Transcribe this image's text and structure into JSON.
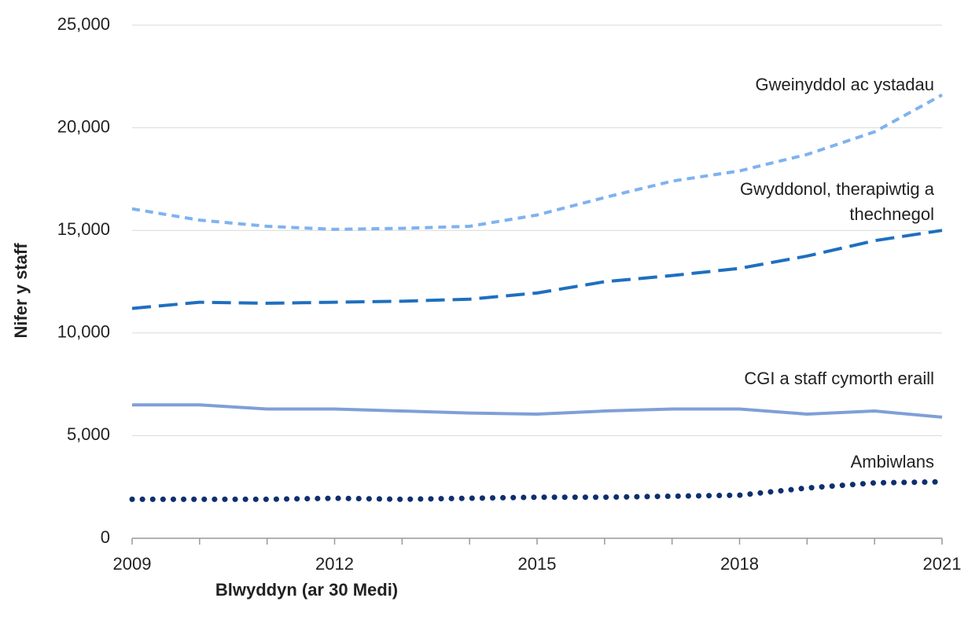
{
  "chart_data": {
    "type": "line",
    "xlabel": "Blwyddyn (ar 30 Medi)",
    "ylabel": "Nifer y staff",
    "x": [
      2009,
      2010,
      2011,
      2012,
      2013,
      2014,
      2015,
      2016,
      2017,
      2018,
      2019,
      2020,
      2021
    ],
    "xlim": [
      2009,
      2021
    ],
    "xticks": [
      2009,
      2012,
      2015,
      2018,
      2021
    ],
    "ylim": [
      0,
      25000
    ],
    "yticks": [
      0,
      {
        "value": 5000,
        "label": "5,000"
      },
      {
        "value": 10000,
        "label": "10,000"
      },
      {
        "value": 15000,
        "label": "15,000"
      },
      {
        "value": 20000,
        "label": "20,000"
      },
      {
        "value": 25000,
        "label": "25,000"
      }
    ],
    "grid": true,
    "series": [
      {
        "name": "Gweinyddol ac ystadau",
        "color": "#7fb2f0",
        "values": [
          16050,
          15500,
          15200,
          15050,
          15100,
          15200,
          15750,
          16600,
          17400,
          17900,
          18700,
          19800,
          21600
        ]
      },
      {
        "name": "Gwyddonol, therapiwtig a thechnegol",
        "color": "#1f6fbf",
        "values": [
          11200,
          11500,
          11450,
          11500,
          11550,
          11650,
          11950,
          12500,
          12800,
          13150,
          13750,
          14500,
          15000
        ]
      },
      {
        "name": "CGI a staff cymorth eraill",
        "color": "#7f9fd8",
        "values": [
          6500,
          6500,
          6300,
          6300,
          6200,
          6100,
          6050,
          6200,
          6300,
          6300,
          6050,
          6200,
          5900
        ]
      },
      {
        "name": "Ambiwlans",
        "color": "#0d2f6e",
        "values": [
          1900,
          1900,
          1900,
          1950,
          1900,
          1950,
          2000,
          2000,
          2050,
          2100,
          2450,
          2700,
          2750
        ]
      }
    ]
  }
}
